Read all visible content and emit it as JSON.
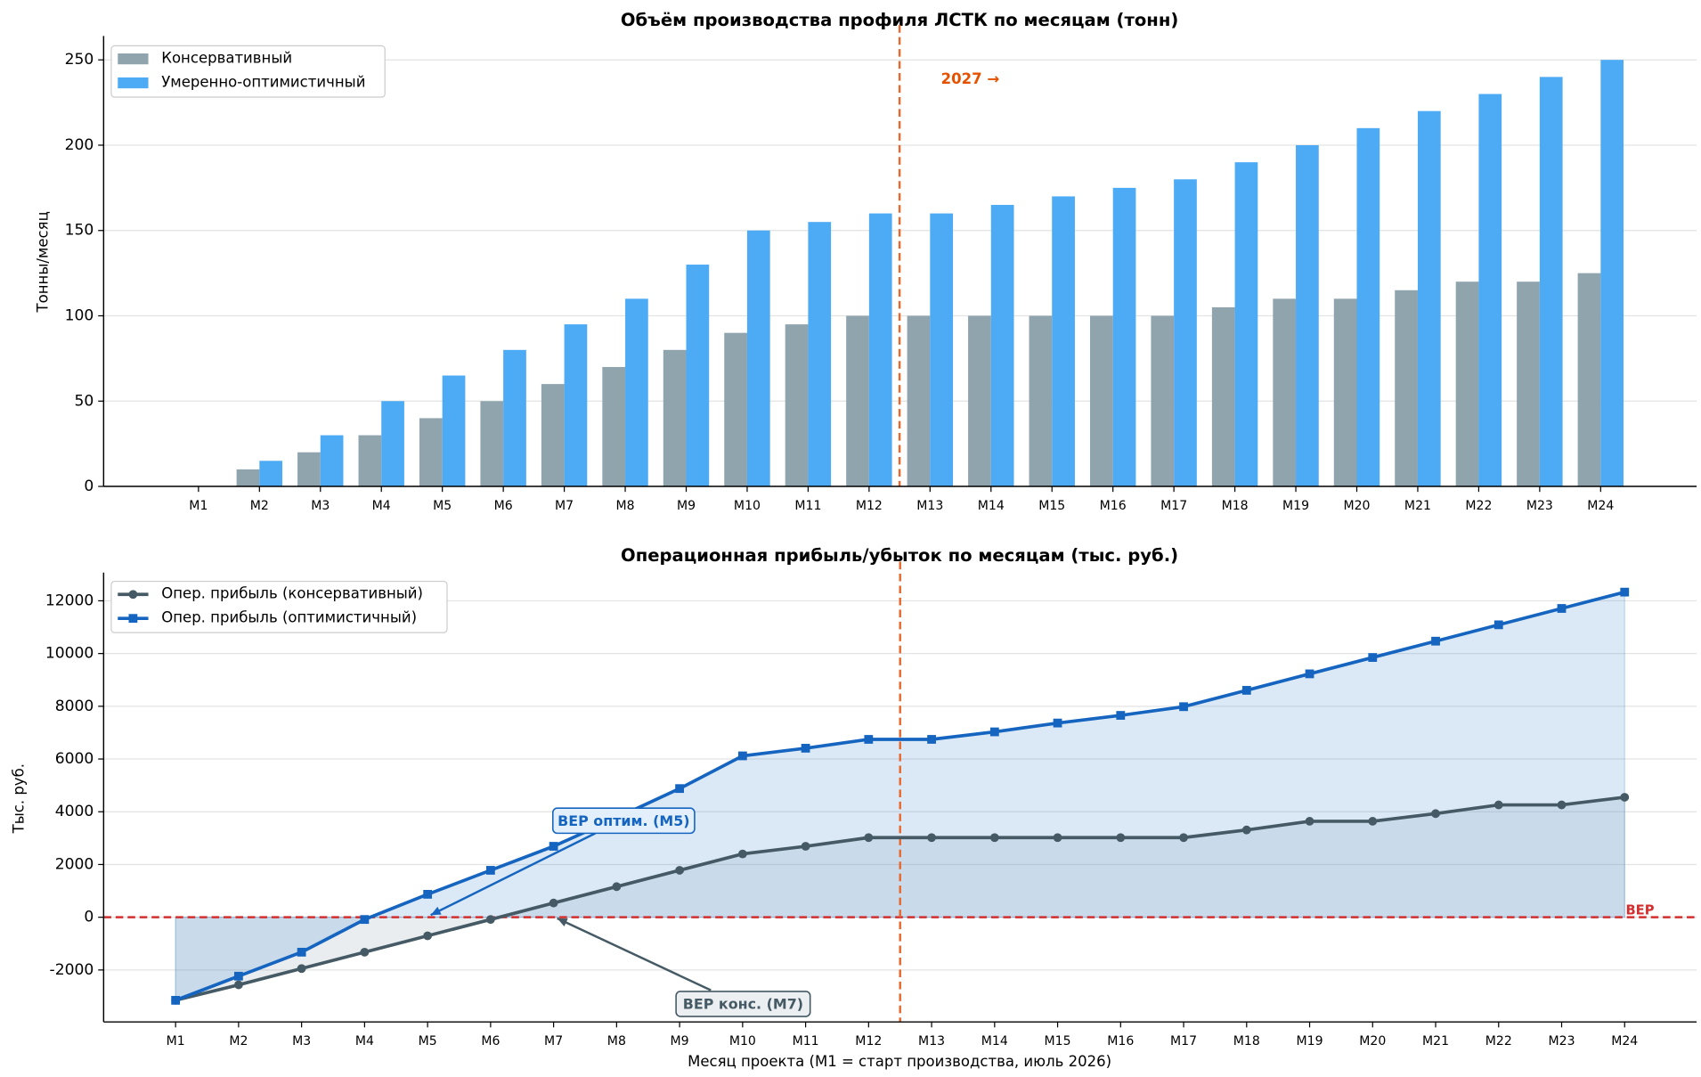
{
  "chart_data": [
    {
      "type": "bar",
      "title": "Объём производства профиля ЛСТК по месяцам (тонн)",
      "ylabel": "Тонны/месяц",
      "categories": [
        "M1",
        "M2",
        "M3",
        "M4",
        "M5",
        "M6",
        "M7",
        "M8",
        "M9",
        "M10",
        "M11",
        "M12",
        "M13",
        "M14",
        "M15",
        "M16",
        "M17",
        "M18",
        "M19",
        "M20",
        "M21",
        "M22",
        "M23",
        "M24"
      ],
      "series": [
        {
          "name": "Консервативный",
          "color": "#90a4ae",
          "values": [
            0,
            10,
            20,
            30,
            40,
            50,
            60,
            70,
            80,
            90,
            95,
            100,
            100,
            100,
            100,
            100,
            100,
            105,
            110,
            110,
            115,
            120,
            120,
            125
          ]
        },
        {
          "name": "Умеренно-оптимистичный",
          "color": "#4dabf5",
          "values": [
            0,
            15,
            30,
            50,
            65,
            80,
            95,
            110,
            130,
            150,
            155,
            160,
            160,
            165,
            170,
            175,
            180,
            190,
            200,
            210,
            220,
            230,
            240,
            250
          ]
        }
      ],
      "ylim": [
        0,
        264
      ],
      "yticks": [
        0,
        50,
        100,
        150,
        200,
        250
      ],
      "grid": true,
      "legend": "upper left",
      "vline_after": "M12",
      "vline_color": "#e8692e",
      "annotations": [
        "2027 →"
      ]
    },
    {
      "type": "line",
      "title": "Операционная прибыль/убыток по месяцам (тыс. руб.)",
      "ylabel": "Тыс. руб.",
      "xlabel": "Месяц проекта  (M1 = старт производства, июль 2026)",
      "categories": [
        "M1",
        "M2",
        "M3",
        "M4",
        "M5",
        "M6",
        "M7",
        "M8",
        "M9",
        "M10",
        "M11",
        "M12",
        "M13",
        "M14",
        "M15",
        "M16",
        "M17",
        "M18",
        "M19",
        "M20",
        "M21",
        "M22",
        "M23",
        "M24"
      ],
      "series": [
        {
          "name": "Опер. прибыль (консервативный)",
          "color": "#455a64",
          "marker": "circle",
          "values": [
            -3150,
            -2565,
            -1945,
            -1325,
            -705,
            -85,
            540,
            1160,
            1780,
            2400,
            2690,
            3020,
            3020,
            3020,
            3020,
            3020,
            3020,
            3310,
            3640,
            3640,
            3930,
            4260,
            4260,
            4550
          ]
        },
        {
          "name": "Опер. прибыль (оптимистичный)",
          "color": "#1565c0",
          "marker": "square",
          "values": [
            -3150,
            -2235,
            -1325,
            -85,
            870,
            1780,
            2690,
            3770,
            4880,
            6120,
            6410,
            6745,
            6745,
            7030,
            7365,
            7655,
            7985,
            8605,
            9230,
            9850,
            10470,
            11090,
            11710,
            12330
          ]
        }
      ],
      "ylim": [
        -3970,
        13070
      ],
      "yticks": [
        -2000,
        0,
        2000,
        4000,
        6000,
        8000,
        10000,
        12000
      ],
      "grid": true,
      "legend": "upper left",
      "vline_after": "M12",
      "vline_color": "#e8692e",
      "hline": {
        "value": 0,
        "label": "BEP",
        "color": "#d32f2f"
      },
      "annotations": [
        "BEP оптим. (M5)",
        "BEP конс. (M7)"
      ]
    }
  ]
}
